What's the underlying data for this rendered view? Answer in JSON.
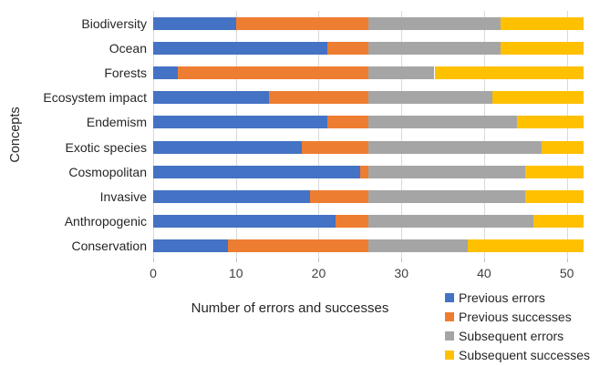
{
  "colors": {
    "gridline": "#D9D9D9",
    "tick_stub": "#BFBFBF",
    "text": "#262626"
  },
  "chart_data": {
    "type": "bar",
    "orientation": "horizontal",
    "stacked": true,
    "title": "",
    "xlabel": "Number of errors and successes",
    "ylabel": "Concepts",
    "xlim": [
      0,
      52.9
    ],
    "xticks": [
      0,
      10,
      20,
      30,
      40,
      50
    ],
    "grid": "vertical",
    "legend_position": "bottom-right",
    "categories": [
      "Biodiversity",
      "Ocean",
      "Forests",
      "Ecosystem impact",
      "Endemism",
      "Exotic species",
      "Cosmopolitan",
      "Invasive",
      "Anthropogenic",
      "Conservation"
    ],
    "series": [
      {
        "name": "Previous errors",
        "color": "#4472C4",
        "values": [
          10,
          21,
          3,
          14,
          21,
          18,
          25,
          19,
          22,
          9
        ]
      },
      {
        "name": "Previous successes",
        "color": "#ED7D31",
        "values": [
          16,
          5,
          23,
          12,
          5,
          8,
          1,
          7,
          4,
          17
        ]
      },
      {
        "name": "Subsequent errors",
        "color": "#A5A5A5",
        "values": [
          16,
          16,
          8,
          15,
          18,
          21,
          19,
          19,
          20,
          12
        ]
      },
      {
        "name": "Subsequent successes",
        "color": "#FFC000",
        "values": [
          10,
          10,
          18,
          11,
          8,
          5,
          7,
          7,
          6,
          14
        ]
      }
    ]
  }
}
